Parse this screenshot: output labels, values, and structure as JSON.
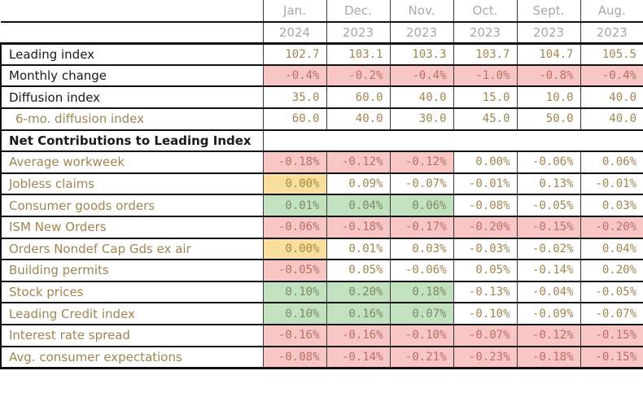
{
  "colors": {
    "header_text": "#a8a8a8",
    "label_black": "#1a1a1a",
    "label_tan": "#a18553",
    "value_text": "#a18553",
    "bg_pink": "#f8c6c4",
    "text_pink": "#bd6e66",
    "bg_green": "#c1e1bf",
    "text_green": "#7d8a62",
    "bg_yellow": "#f8dfa0",
    "text_yellow": "#a8893e",
    "bg_none": "#ffffff"
  },
  "chart_data": {
    "type": "table",
    "title": "Leading Index and Net Contributions table",
    "columns": [
      {
        "month": "Jan.",
        "year": "2024"
      },
      {
        "month": "Dec.",
        "year": "2023"
      },
      {
        "month": "Nov.",
        "year": "2023"
      },
      {
        "month": "Oct.",
        "year": "2023"
      },
      {
        "month": "Sept.",
        "year": "2023"
      },
      {
        "month": "Aug.",
        "year": "2023"
      }
    ],
    "rows": [
      {
        "label": "Leading index",
        "label_color": "black",
        "indent": false,
        "section": false,
        "cells": [
          {
            "v": "102.7",
            "bg": "none"
          },
          {
            "v": "103.1",
            "bg": "none"
          },
          {
            "v": "103.3",
            "bg": "none"
          },
          {
            "v": "103.7",
            "bg": "none"
          },
          {
            "v": "104.7",
            "bg": "none"
          },
          {
            "v": "105.5",
            "bg": "none"
          }
        ]
      },
      {
        "label": "Monthly change",
        "label_color": "black",
        "indent": false,
        "section": false,
        "cells": [
          {
            "v": "-0.4%",
            "bg": "pink"
          },
          {
            "v": "-0.2%",
            "bg": "pink"
          },
          {
            "v": "-0.4%",
            "bg": "pink"
          },
          {
            "v": "-1.0%",
            "bg": "pink"
          },
          {
            "v": "-0.8%",
            "bg": "pink"
          },
          {
            "v": "-0.4%",
            "bg": "pink"
          }
        ]
      },
      {
        "label": "Diffusion index",
        "label_color": "black",
        "indent": false,
        "section": false,
        "cells": [
          {
            "v": "35.0",
            "bg": "none"
          },
          {
            "v": "60.0",
            "bg": "none"
          },
          {
            "v": "40.0",
            "bg": "none"
          },
          {
            "v": "15.0",
            "bg": "none"
          },
          {
            "v": "10.0",
            "bg": "none"
          },
          {
            "v": "40.0",
            "bg": "none"
          }
        ]
      },
      {
        "label": "6-mo. diffusion index",
        "label_color": "tan",
        "indent": true,
        "section": false,
        "cells": [
          {
            "v": "60.0",
            "bg": "none"
          },
          {
            "v": "40.0",
            "bg": "none"
          },
          {
            "v": "30.0",
            "bg": "none"
          },
          {
            "v": "45.0",
            "bg": "none"
          },
          {
            "v": "50.0",
            "bg": "none"
          },
          {
            "v": "40.0",
            "bg": "none"
          }
        ]
      },
      {
        "label": "Net Contributions to Leading Index",
        "label_color": "black",
        "indent": false,
        "section": true,
        "cells": []
      },
      {
        "label": "Average workweek",
        "label_color": "tan",
        "indent": false,
        "section": false,
        "cells": [
          {
            "v": "-0.18%",
            "bg": "pink"
          },
          {
            "v": "-0.12%",
            "bg": "pink"
          },
          {
            "v": "-0.12%",
            "bg": "pink"
          },
          {
            "v": "0.00%",
            "bg": "none"
          },
          {
            "v": "-0.06%",
            "bg": "none"
          },
          {
            "v": "0.06%",
            "bg": "none"
          }
        ]
      },
      {
        "label": "Jobless claims",
        "label_color": "tan",
        "indent": false,
        "section": false,
        "cells": [
          {
            "v": "0.00%",
            "bg": "yellow"
          },
          {
            "v": "0.09%",
            "bg": "none"
          },
          {
            "v": "-0.07%",
            "bg": "none"
          },
          {
            "v": "-0.01%",
            "bg": "none"
          },
          {
            "v": "0.13%",
            "bg": "none"
          },
          {
            "v": "-0.01%",
            "bg": "none"
          }
        ]
      },
      {
        "label": "Consumer goods orders",
        "label_color": "tan",
        "indent": false,
        "section": false,
        "cells": [
          {
            "v": "0.01%",
            "bg": "green"
          },
          {
            "v": "0.04%",
            "bg": "green"
          },
          {
            "v": "0.06%",
            "bg": "green"
          },
          {
            "v": "-0.08%",
            "bg": "none"
          },
          {
            "v": "-0.05%",
            "bg": "none"
          },
          {
            "v": "0.03%",
            "bg": "none"
          }
        ]
      },
      {
        "label": "ISM New Orders",
        "label_color": "tan",
        "indent": false,
        "section": false,
        "cells": [
          {
            "v": "-0.06%",
            "bg": "pink"
          },
          {
            "v": "-0.18%",
            "bg": "pink"
          },
          {
            "v": "-0.17%",
            "bg": "pink"
          },
          {
            "v": "-0.20%",
            "bg": "pink"
          },
          {
            "v": "-0.15%",
            "bg": "pink"
          },
          {
            "v": "-0.20%",
            "bg": "pink"
          }
        ]
      },
      {
        "label": "Orders Nondef Cap Gds ex air",
        "label_color": "tan",
        "indent": false,
        "section": false,
        "cells": [
          {
            "v": "0.00%",
            "bg": "yellow"
          },
          {
            "v": "0.01%",
            "bg": "none"
          },
          {
            "v": "0.03%",
            "bg": "none"
          },
          {
            "v": "-0.03%",
            "bg": "none"
          },
          {
            "v": "-0.02%",
            "bg": "none"
          },
          {
            "v": "0.04%",
            "bg": "none"
          }
        ]
      },
      {
        "label": "Building permits",
        "label_color": "tan",
        "indent": false,
        "section": false,
        "cells": [
          {
            "v": "-0.05%",
            "bg": "pink"
          },
          {
            "v": "0.05%",
            "bg": "none"
          },
          {
            "v": "-0.06%",
            "bg": "none"
          },
          {
            "v": "0.05%",
            "bg": "none"
          },
          {
            "v": "-0.14%",
            "bg": "none"
          },
          {
            "v": "0.20%",
            "bg": "none"
          }
        ]
      },
      {
        "label": "Stock prices",
        "label_color": "tan",
        "indent": false,
        "section": false,
        "cells": [
          {
            "v": "0.10%",
            "bg": "green"
          },
          {
            "v": "0.20%",
            "bg": "green"
          },
          {
            "v": "0.18%",
            "bg": "green"
          },
          {
            "v": "-0.13%",
            "bg": "none"
          },
          {
            "v": "-0.04%",
            "bg": "none"
          },
          {
            "v": "-0.05%",
            "bg": "none"
          }
        ]
      },
      {
        "label": "Leading Credit index",
        "label_color": "tan",
        "indent": false,
        "section": false,
        "cells": [
          {
            "v": "0.10%",
            "bg": "green"
          },
          {
            "v": "0.16%",
            "bg": "green"
          },
          {
            "v": "0.07%",
            "bg": "green"
          },
          {
            "v": "-0.10%",
            "bg": "none"
          },
          {
            "v": "-0.09%",
            "bg": "none"
          },
          {
            "v": "-0.07%",
            "bg": "none"
          }
        ]
      },
      {
        "label": "Interest rate spread",
        "label_color": "tan",
        "indent": false,
        "section": false,
        "cells": [
          {
            "v": "-0.16%",
            "bg": "pink"
          },
          {
            "v": "-0.16%",
            "bg": "pink"
          },
          {
            "v": "-0.10%",
            "bg": "pink"
          },
          {
            "v": "-0.07%",
            "bg": "pink"
          },
          {
            "v": "-0.12%",
            "bg": "pink"
          },
          {
            "v": "-0.15%",
            "bg": "pink"
          }
        ]
      },
      {
        "label": "Avg. consumer expectations",
        "label_color": "tan",
        "indent": false,
        "section": false,
        "cells": [
          {
            "v": "-0.08%",
            "bg": "pink"
          },
          {
            "v": "-0.14%",
            "bg": "pink"
          },
          {
            "v": "-0.21%",
            "bg": "pink"
          },
          {
            "v": "-0.23%",
            "bg": "pink"
          },
          {
            "v": "-0.18%",
            "bg": "pink"
          },
          {
            "v": "-0.15%",
            "bg": "pink"
          }
        ]
      }
    ]
  }
}
